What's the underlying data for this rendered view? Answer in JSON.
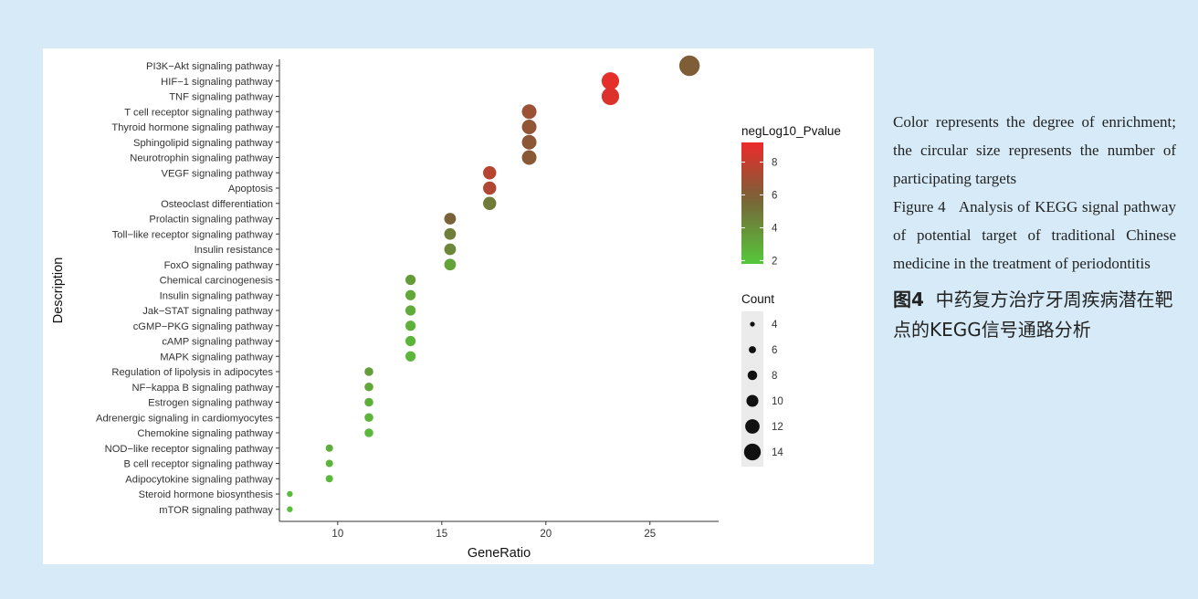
{
  "chart_data": {
    "type": "scatter",
    "xlabel": "GeneRatio",
    "ylabel": "Description",
    "xlim": [
      7.2,
      28.3
    ],
    "xticks": [
      10,
      15,
      20,
      25
    ],
    "categories": [
      "PI3K−Akt signaling pathway",
      "HIF−1 signaling pathway",
      "TNF signaling pathway",
      "T cell receptor signaling pathway",
      "Thyroid hormone signaling pathway",
      "Sphingolipid signaling pathway",
      "Neurotrophin signaling pathway",
      "VEGF signaling pathway",
      "Apoptosis",
      "Osteoclast differentiation",
      "Prolactin signaling pathway",
      "Toll−like receptor signaling pathway",
      "Insulin resistance",
      "FoxO signaling pathway",
      "Chemical carcinogenesis",
      "Insulin signaling pathway",
      "Jak−STAT signaling pathway",
      "cGMP−PKG signaling pathway",
      "cAMP signaling pathway",
      "MAPK signaling pathway",
      "Regulation of lipolysis in adipocytes",
      "NF−kappa B signaling pathway",
      "Estrogen signaling pathway",
      "Adrenergic signaling in cardiomyocytes",
      "Chemokine signaling pathway",
      "NOD−like receptor signaling pathway",
      "B cell receptor signaling pathway",
      "Adipocytokine signaling pathway",
      "Steroid hormone biosynthesis",
      "mTOR signaling pathway"
    ],
    "points": [
      {
        "x": 26.9,
        "count": 14,
        "negLog10_Pvalue": 6.0
      },
      {
        "x": 23.1,
        "count": 12,
        "negLog10_Pvalue": 8.9
      },
      {
        "x": 23.1,
        "count": 12,
        "negLog10_Pvalue": 8.7
      },
      {
        "x": 19.2,
        "count": 10,
        "negLog10_Pvalue": 6.8
      },
      {
        "x": 19.2,
        "count": 10,
        "negLog10_Pvalue": 6.5
      },
      {
        "x": 19.2,
        "count": 10,
        "negLog10_Pvalue": 6.4
      },
      {
        "x": 19.2,
        "count": 10,
        "negLog10_Pvalue": 6.3
      },
      {
        "x": 17.3,
        "count": 9,
        "negLog10_Pvalue": 7.6
      },
      {
        "x": 17.3,
        "count": 9,
        "negLog10_Pvalue": 7.4
      },
      {
        "x": 17.3,
        "count": 9,
        "negLog10_Pvalue": 4.8
      },
      {
        "x": 15.4,
        "count": 8,
        "negLog10_Pvalue": 5.8
      },
      {
        "x": 15.4,
        "count": 8,
        "negLog10_Pvalue": 4.7
      },
      {
        "x": 15.4,
        "count": 8,
        "negLog10_Pvalue": 4.4
      },
      {
        "x": 15.4,
        "count": 8,
        "negLog10_Pvalue": 3.3
      },
      {
        "x": 13.5,
        "count": 7,
        "negLog10_Pvalue": 3.6
      },
      {
        "x": 13.5,
        "count": 7,
        "negLog10_Pvalue": 3.0
      },
      {
        "x": 13.5,
        "count": 7,
        "negLog10_Pvalue": 2.9
      },
      {
        "x": 13.5,
        "count": 7,
        "negLog10_Pvalue": 2.7
      },
      {
        "x": 13.5,
        "count": 7,
        "negLog10_Pvalue": 2.6
      },
      {
        "x": 13.5,
        "count": 7,
        "negLog10_Pvalue": 2.5
      },
      {
        "x": 11.5,
        "count": 6,
        "negLog10_Pvalue": 3.5
      },
      {
        "x": 11.5,
        "count": 6,
        "negLog10_Pvalue": 3.1
      },
      {
        "x": 11.5,
        "count": 6,
        "negLog10_Pvalue": 2.8
      },
      {
        "x": 11.5,
        "count": 6,
        "negLog10_Pvalue": 2.6
      },
      {
        "x": 11.5,
        "count": 6,
        "negLog10_Pvalue": 2.4
      },
      {
        "x": 9.6,
        "count": 5,
        "negLog10_Pvalue": 2.8
      },
      {
        "x": 9.6,
        "count": 5,
        "negLog10_Pvalue": 2.6
      },
      {
        "x": 9.6,
        "count": 5,
        "negLog10_Pvalue": 2.4
      },
      {
        "x": 7.7,
        "count": 4,
        "negLog10_Pvalue": 2.3
      },
      {
        "x": 7.7,
        "count": 4,
        "negLog10_Pvalue": 2.1
      }
    ],
    "color_legend": {
      "title": "negLog10_Pvalue",
      "ticks": [
        8,
        6,
        4,
        2
      ],
      "range": [
        1.8,
        9.2
      ],
      "low_color": "#55c83a",
      "high_color": "#ee2a2a",
      "placement": "right"
    },
    "size_legend": {
      "title": "Count",
      "values": [
        4,
        6,
        8,
        10,
        12,
        14
      ],
      "placement": "right"
    },
    "grid": false
  },
  "caption": {
    "english_body": "Color represents the degree of en­richment; the circular size repre­sents the number of participating targets",
    "english_figure_label": "Figure 4",
    "english_title": "Analysis of KEGG signal pathway of potential tar­get of traditional Chinese medi­cine in the treatment of peri­odontitis",
    "chinese_figure_label": "图4",
    "chinese_title": "中药复方治疗牙周疾病潜在靶点的KEGG信号通路分析"
  }
}
